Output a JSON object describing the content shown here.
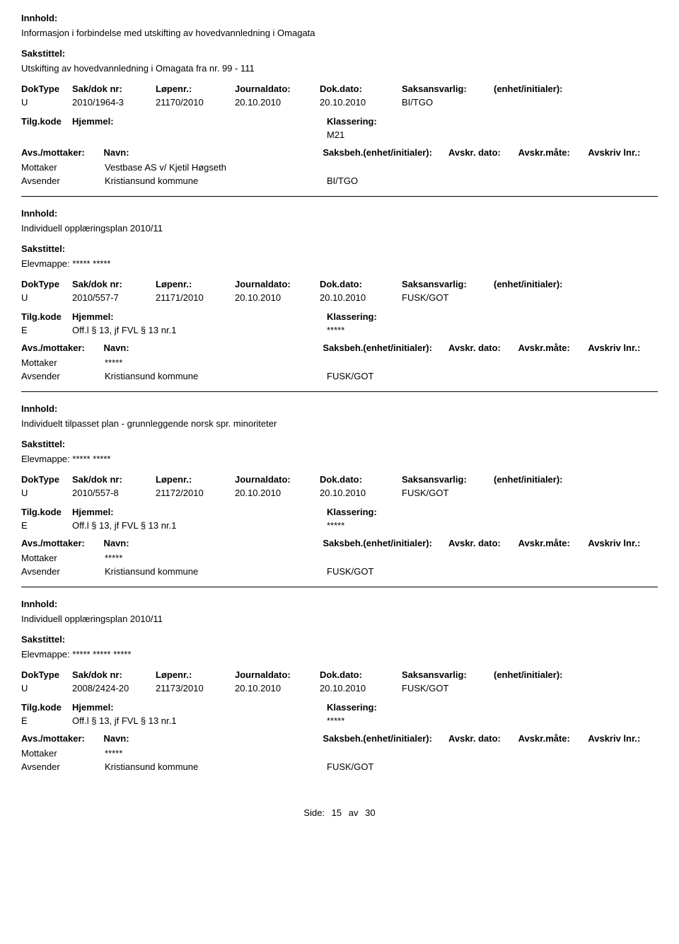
{
  "labels": {
    "innhold": "Innhold:",
    "sakstittel": "Sakstittel:",
    "doktype": "DokType",
    "sakdok": "Sak/dok nr:",
    "lopenr": "Løpenr.:",
    "journaldato": "Journaldato:",
    "dokdato": "Dok.dato:",
    "saksansvarlig": "Saksansvarlig:",
    "enhet": "(enhet/initialer):",
    "tilgkode": "Tilg.kode",
    "hjemmel": "Hjemmel:",
    "klassering": "Klassering:",
    "avsmottaker": "Avs./mottaker:",
    "navn": "Navn:",
    "saksbeh": "Saksbeh.(enhet/initialer):",
    "avskrdato": "Avskr. dato:",
    "avskrmote": "Avskr.måte:",
    "avskrivlnr": "Avskriv lnr.:",
    "mottaker": "Mottaker",
    "avsender": "Avsender",
    "side": "Side:",
    "av": "av"
  },
  "records": [
    {
      "innhold": "Informasjon i forbindelse med utskifting av hovedvannledning i Omagata",
      "sakstittel": "Utskifting av hovedvannledning i Omagata fra nr. 99 - 111",
      "doktype": "U",
      "sakdok": "2010/1964-3",
      "lopenr": "21170/2010",
      "journaldato": "20.10.2010",
      "dokdato": "20.10.2010",
      "saksansvarlig": "BI/TGO",
      "tilg": "",
      "hjemmel": "",
      "klassering": "M21",
      "mottaker_navn": "Vestbase AS v/ Kjetil Høgseth",
      "avsender_navn": "Kristiansund kommune",
      "avsender_ref": "BI/TGO"
    },
    {
      "innhold": "Individuell opplæringsplan 2010/11",
      "sakstittel": "Elevmappe: ***** *****",
      "doktype": "U",
      "sakdok": "2010/557-7",
      "lopenr": "21171/2010",
      "journaldato": "20.10.2010",
      "dokdato": "20.10.2010",
      "saksansvarlig": "FUSK/GOT",
      "tilg": "E",
      "hjemmel": "Off.l § 13, jf FVL § 13 nr.1",
      "klassering": "*****",
      "mottaker_navn": "*****",
      "avsender_navn": "Kristiansund kommune",
      "avsender_ref": "FUSK/GOT"
    },
    {
      "innhold": "Individuelt tilpasset plan - grunnleggende norsk spr. minoriteter",
      "sakstittel": "Elevmappe: ***** *****",
      "doktype": "U",
      "sakdok": "2010/557-8",
      "lopenr": "21172/2010",
      "journaldato": "20.10.2010",
      "dokdato": "20.10.2010",
      "saksansvarlig": "FUSK/GOT",
      "tilg": "E",
      "hjemmel": "Off.l § 13, jf FVL § 13 nr.1",
      "klassering": "*****",
      "mottaker_navn": "*****",
      "avsender_navn": "Kristiansund kommune",
      "avsender_ref": "FUSK/GOT"
    },
    {
      "innhold": "Individuell opplæringsplan 2010/11",
      "sakstittel": "Elevmappe: ***** ***** *****",
      "doktype": "U",
      "sakdok": "2008/2424-20",
      "lopenr": "21173/2010",
      "journaldato": "20.10.2010",
      "dokdato": "20.10.2010",
      "saksansvarlig": "FUSK/GOT",
      "tilg": "E",
      "hjemmel": "Off.l § 13, jf FVL § 13 nr.1",
      "klassering": "*****",
      "mottaker_navn": "*****",
      "avsender_navn": "Kristiansund kommune",
      "avsender_ref": "FUSK/GOT"
    }
  ],
  "footer": {
    "page": "15",
    "total": "30"
  }
}
